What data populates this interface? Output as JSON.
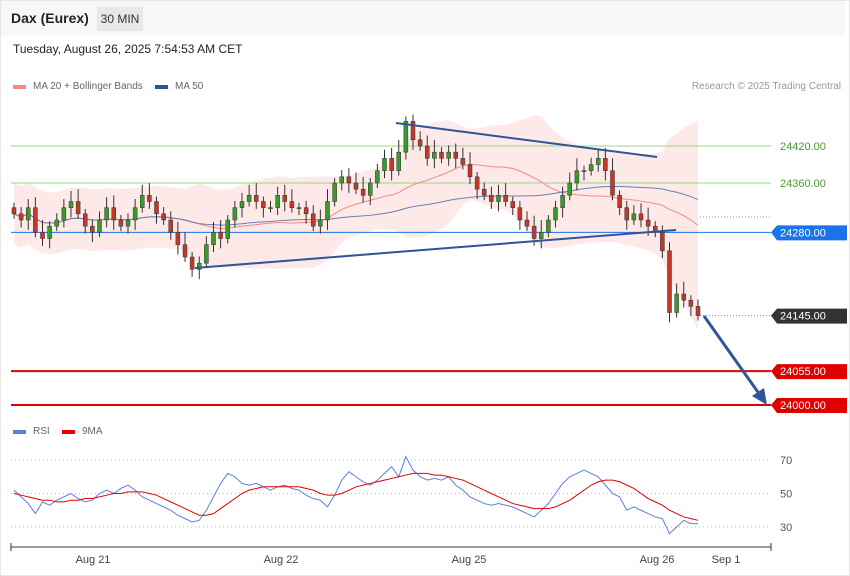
{
  "header": {
    "instrument": "Dax (Eurex)",
    "timeframe": "30 MIN",
    "timestamp": "Tuesday, August 26, 2025 7:54:53 AM CET"
  },
  "legend": {
    "ma20": {
      "label": "MA 20 + Bollinger Bands",
      "color": "#f28b82"
    },
    "ma50": {
      "label": "MA 50",
      "color": "#2f5597"
    },
    "credit": "Research © 2025 Trading Central"
  },
  "rsi_legend": {
    "rsi": {
      "label": "RSI",
      "color": "#5b7fd9"
    },
    "ma9": {
      "label": "9MA",
      "color": "#e00000"
    }
  },
  "chart_data": [
    {
      "type": "candlestick",
      "y_range": [
        23980,
        24500
      ],
      "x_labels": [
        "Aug 21",
        "Aug 22",
        "Aug 25",
        "Aug 26",
        "Sep 1"
      ],
      "price_levels": [
        {
          "label": "24420.00",
          "value": 24420,
          "kind": "resistance",
          "color": "#9cd48a"
        },
        {
          "label": "24360.00",
          "value": 24360,
          "kind": "resistance",
          "color": "#9cd48a"
        },
        {
          "label": "24280.00",
          "value": 24280,
          "kind": "pivot",
          "color": "#1a73e8"
        },
        {
          "label": "24145.00",
          "value": 24145,
          "kind": "last",
          "color": "#333333"
        },
        {
          "label": "24055.00",
          "value": 24055,
          "kind": "support",
          "color": "#e00000"
        },
        {
          "label": "24000.00",
          "value": 24000,
          "kind": "support",
          "color": "#e00000"
        }
      ],
      "close": [
        24310,
        24300,
        24320,
        24280,
        24270,
        24290,
        24300,
        24320,
        24330,
        24310,
        24290,
        24280,
        24300,
        24320,
        24300,
        24290,
        24300,
        24320,
        24340,
        24330,
        24310,
        24300,
        24280,
        24260,
        24240,
        24220,
        24230,
        24260,
        24280,
        24270,
        24300,
        24320,
        24330,
        24340,
        24330,
        24320,
        24320,
        24340,
        24330,
        24320,
        24320,
        24310,
        24290,
        24300,
        24330,
        24360,
        24370,
        24360,
        24350,
        24340,
        24360,
        24380,
        24400,
        24380,
        24410,
        24460,
        24430,
        24420,
        24400,
        24410,
        24400,
        24410,
        24400,
        24390,
        24370,
        24350,
        24340,
        24330,
        24340,
        24330,
        24320,
        24300,
        24290,
        24270,
        24280,
        24300,
        24320,
        24340,
        24360,
        24380,
        24380,
        24390,
        24400,
        24380,
        24340,
        24320,
        24300,
        24310,
        24300,
        24290,
        24280,
        24250,
        24150,
        24180,
        24170,
        24160,
        24145
      ]
    },
    {
      "type": "line",
      "title": "RSI",
      "y_range": [
        25,
        80
      ],
      "y_ticks": [
        70,
        50,
        30
      ],
      "series": [
        {
          "name": "RSI",
          "values": [
            52,
            48,
            44,
            38,
            45,
            43,
            46,
            48,
            50,
            47,
            45,
            46,
            50,
            52,
            50,
            53,
            55,
            52,
            48,
            46,
            44,
            42,
            40,
            37,
            35,
            33,
            34,
            40,
            48,
            56,
            62,
            60,
            56,
            55,
            56,
            54,
            52,
            54,
            55,
            53,
            52,
            49,
            47,
            46,
            42,
            49,
            58,
            63,
            60,
            57,
            55,
            58,
            62,
            66,
            60,
            72,
            64,
            60,
            58,
            59,
            58,
            60,
            55,
            52,
            48,
            46,
            44,
            43,
            44,
            43,
            42,
            40,
            38,
            36,
            40,
            44,
            50,
            56,
            60,
            62,
            64,
            62,
            60,
            55,
            50,
            48,
            40,
            42,
            40,
            38,
            36,
            35,
            26,
            30,
            34,
            32,
            32
          ]
        },
        {
          "name": "9MA",
          "values": [
            50,
            49,
            48,
            47,
            46,
            46,
            45,
            45,
            46,
            46,
            47,
            47,
            48,
            49,
            50,
            50,
            51,
            51,
            51,
            50,
            49,
            47,
            45,
            43,
            41,
            39,
            37,
            37,
            38,
            41,
            44,
            47,
            50,
            52,
            53,
            54,
            54,
            54,
            54,
            54,
            54,
            53,
            52,
            50,
            49,
            49,
            50,
            52,
            54,
            55,
            56,
            57,
            58,
            59,
            60,
            61,
            62,
            62,
            62,
            61,
            61,
            60,
            59,
            58,
            56,
            54,
            52,
            50,
            48,
            46,
            44,
            43,
            42,
            41,
            41,
            41,
            42,
            44,
            46,
            49,
            52,
            55,
            57,
            58,
            58,
            57,
            55,
            53,
            50,
            47,
            45,
            43,
            40,
            38,
            36,
            35,
            34
          ]
        }
      ]
    }
  ]
}
